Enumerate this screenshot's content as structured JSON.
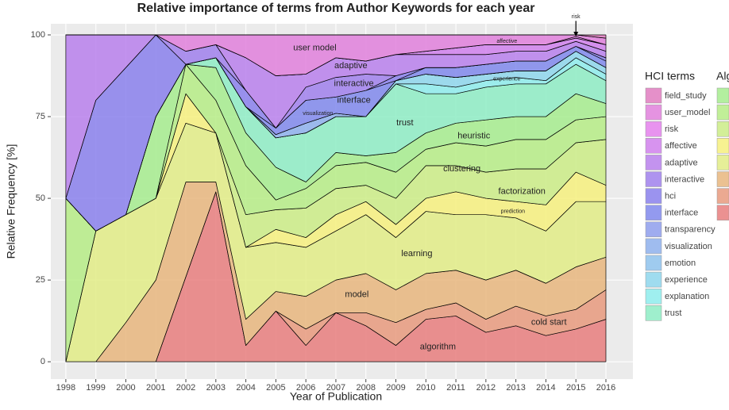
{
  "chart_data": {
    "type": "stacked_area",
    "title": "Relative importance of terms from Author Keywords for each year",
    "x_label": "Year of Publication",
    "y_label": "Relative Frequency [%]",
    "x": [
      1998,
      1999,
      2000,
      2001,
      2002,
      2003,
      2004,
      2005,
      2006,
      2007,
      2008,
      2009,
      2010,
      2011,
      2012,
      2013,
      2014,
      2015,
      2016
    ],
    "xlim": [
      1997.5,
      2016.9
    ],
    "xticks": [
      1998,
      1999,
      2000,
      2001,
      2002,
      2003,
      2004,
      2005,
      2006,
      2007,
      2008,
      2009,
      2010,
      2011,
      2012,
      2013,
      2014,
      2015,
      2016
    ],
    "ylim": [
      -5.3,
      103.4
    ],
    "yticks": [
      0,
      25,
      50,
      75,
      100
    ],
    "grid": true,
    "legends": [
      {
        "title": "HCI terms"
      },
      {
        "title": "Alg"
      }
    ],
    "series": [
      {
        "name": "algorithm",
        "legend": 1,
        "color": "#e87e7e",
        "values": [
          0,
          0,
          0,
          0,
          26,
          52,
          5,
          15.5,
          5,
          15,
          11,
          5,
          13,
          14,
          9,
          11,
          8,
          10,
          13
        ]
      },
      {
        "name": "cold start",
        "legend": 1,
        "color": "#e89a7e",
        "values": [
          0,
          0,
          0,
          0,
          0,
          0,
          0,
          0,
          5,
          0,
          4,
          7,
          3,
          4,
          4,
          6,
          6,
          6,
          9
        ]
      },
      {
        "name": "model",
        "legend": 1,
        "color": "#e8b67e",
        "values": [
          0,
          0,
          12,
          25,
          29,
          3,
          8,
          6,
          10,
          10,
          12,
          10,
          11,
          10,
          12,
          11,
          10,
          13,
          10
        ]
      },
      {
        "name": "learning",
        "legend": 1,
        "color": "#e2ec86",
        "values": [
          0,
          40,
          33,
          25,
          18,
          15,
          22,
          15,
          15,
          15,
          18,
          16,
          19,
          17,
          20,
          16,
          16,
          20,
          17
        ]
      },
      {
        "name": "prediction",
        "legend": 1,
        "color": "#f6f07e",
        "values": [
          0,
          0,
          0,
          0,
          9,
          0,
          0,
          4,
          3,
          5,
          4,
          4,
          4,
          7,
          5,
          5,
          8,
          9,
          5
        ]
      },
      {
        "name": "factorization",
        "legend": 1,
        "color": "#cbec86",
        "values": [
          0,
          0,
          0,
          0,
          0,
          0,
          10,
          6,
          9,
          8,
          5,
          8,
          10,
          8,
          8,
          10,
          11,
          9,
          14
        ]
      },
      {
        "name": "clustering",
        "legend": 1,
        "color": "#b6ec86",
        "values": [
          50,
          0,
          0,
          0,
          9,
          10,
          15,
          3,
          6,
          7,
          7,
          8,
          5,
          7,
          8,
          9,
          9,
          7,
          7
        ]
      },
      {
        "name": "heuristic",
        "legend": 1,
        "color": "#a6ec8e",
        "values": [
          0,
          0,
          0,
          25,
          0,
          10,
          10,
          10,
          2,
          4,
          2,
          6,
          5,
          6,
          8,
          7,
          7,
          8,
          4
        ]
      },
      {
        "name": "trust",
        "legend": 0,
        "color": "#8eecc4",
        "values": [
          0,
          0,
          0,
          0,
          0,
          3,
          8,
          9,
          15,
          11,
          12,
          21,
          12,
          9,
          10,
          10,
          10,
          9,
          7
        ]
      },
      {
        "name": "explanation",
        "legend": 0,
        "color": "#8eecec",
        "values": [
          0,
          0,
          0,
          0,
          0,
          0,
          0,
          0,
          0,
          0,
          0,
          0,
          3,
          2,
          2,
          2,
          1,
          2,
          2
        ]
      },
      {
        "name": "experience",
        "legend": 0,
        "color": "#8ed6ec",
        "values": [
          0,
          0,
          0,
          0,
          0,
          0,
          0,
          0,
          0,
          0,
          0,
          1,
          3,
          3,
          2,
          2,
          3,
          2,
          2
        ]
      },
      {
        "name": "emotion",
        "legend": 0,
        "color": "#8ec2ec",
        "values": [
          0,
          0,
          0,
          0,
          0,
          0,
          0,
          0,
          0,
          0,
          0,
          0,
          0,
          0,
          0,
          0,
          0,
          0,
          0
        ]
      },
      {
        "name": "visualization",
        "legend": 0,
        "color": "#8eb0ec",
        "values": [
          0,
          0,
          0,
          0,
          0,
          0,
          0,
          1,
          3,
          1,
          0,
          0,
          0,
          0,
          0,
          0,
          0,
          0,
          0
        ]
      },
      {
        "name": "transparency",
        "legend": 0,
        "color": "#8e9eec",
        "values": [
          0,
          0,
          0,
          0,
          0,
          0,
          0,
          0,
          0,
          0,
          0,
          0,
          0,
          0,
          0,
          0,
          0,
          0,
          0
        ]
      },
      {
        "name": "interface",
        "legend": 0,
        "color": "#8088ec",
        "values": [
          0,
          0,
          0,
          0,
          0,
          0,
          0,
          2,
          7,
          5,
          8,
          0,
          2,
          3,
          3,
          3,
          3,
          1.5,
          2
        ]
      },
      {
        "name": "hci",
        "legend": 0,
        "color": "#8a80ec",
        "values": [
          0,
          40,
          45,
          25,
          0,
          0,
          5,
          0,
          0,
          0,
          0,
          1.5,
          0,
          0,
          0,
          0,
          0,
          0,
          1
        ]
      },
      {
        "name": "interactive",
        "legend": 0,
        "color": "#a080ec",
        "values": [
          0,
          0,
          0,
          0,
          4,
          4,
          0,
          0,
          4,
          6,
          5,
          0,
          0,
          0,
          0,
          0,
          0,
          0,
          0
        ]
      },
      {
        "name": "adaptive",
        "legend": 0,
        "color": "#b880ec",
        "values": [
          50,
          20,
          10,
          0,
          0,
          0,
          10,
          16,
          4,
          6,
          4,
          6.5,
          4,
          4,
          3,
          3,
          3,
          1.5,
          2
        ]
      },
      {
        "name": "affective",
        "legend": 0,
        "color": "#d080ec",
        "values": [
          0,
          0,
          0,
          0,
          0,
          0,
          0,
          0,
          0,
          0,
          0,
          0,
          1,
          2,
          3,
          2,
          2,
          1,
          2
        ]
      },
      {
        "name": "risk",
        "legend": 0,
        "color": "#e480ec",
        "values": [
          0,
          0,
          0,
          0,
          0,
          0,
          0,
          0,
          0,
          0,
          0,
          0,
          0,
          0,
          0,
          0,
          0,
          0.5,
          0
        ]
      },
      {
        "name": "user_model",
        "legend": 0,
        "color": "#e080dc",
        "values": [
          0,
          0,
          0,
          0,
          5,
          3,
          7,
          12.5,
          12,
          7,
          8,
          6,
          5,
          4,
          3,
          3,
          3,
          0.5,
          2
        ]
      },
      {
        "name": "field_study",
        "legend": 0,
        "color": "#e07cc0",
        "values": [
          0,
          0,
          0,
          0,
          0,
          0,
          0,
          0,
          0,
          0,
          0,
          0,
          0,
          0,
          0,
          0,
          0,
          0,
          1
        ]
      }
    ],
    "annotations": [
      {
        "text": "user model",
        "x": 2006.3,
        "y": 96
      },
      {
        "text": "adaptive",
        "x": 2007.5,
        "y": 90.5
      },
      {
        "text": "interactive",
        "x": 2007.6,
        "y": 85
      },
      {
        "text": "interface",
        "x": 2007.6,
        "y": 80
      },
      {
        "text": "visualization",
        "x": 2006.4,
        "y": 76,
        "small": true
      },
      {
        "text": "trust",
        "x": 2009.3,
        "y": 73
      },
      {
        "text": "heuristic",
        "x": 2011.6,
        "y": 69
      },
      {
        "text": "clustering",
        "x": 2011.2,
        "y": 59
      },
      {
        "text": "factorization",
        "x": 2013.2,
        "y": 52
      },
      {
        "text": "prediction",
        "x": 2012.9,
        "y": 46,
        "small": true
      },
      {
        "text": "learning",
        "x": 2009.7,
        "y": 33
      },
      {
        "text": "model",
        "x": 2007.7,
        "y": 20.5
      },
      {
        "text": "cold start",
        "x": 2014.1,
        "y": 12
      },
      {
        "text": "algorithm",
        "x": 2010.4,
        "y": 4.5
      },
      {
        "text": "affective",
        "x": 2012.7,
        "y": 98,
        "small": true
      },
      {
        "text": "experience",
        "x": 2012.7,
        "y": 86.5,
        "small": true
      },
      {
        "text": "risk",
        "x": 2015,
        "y": 105.5,
        "small": true,
        "arrow_to": 99.5
      }
    ]
  }
}
